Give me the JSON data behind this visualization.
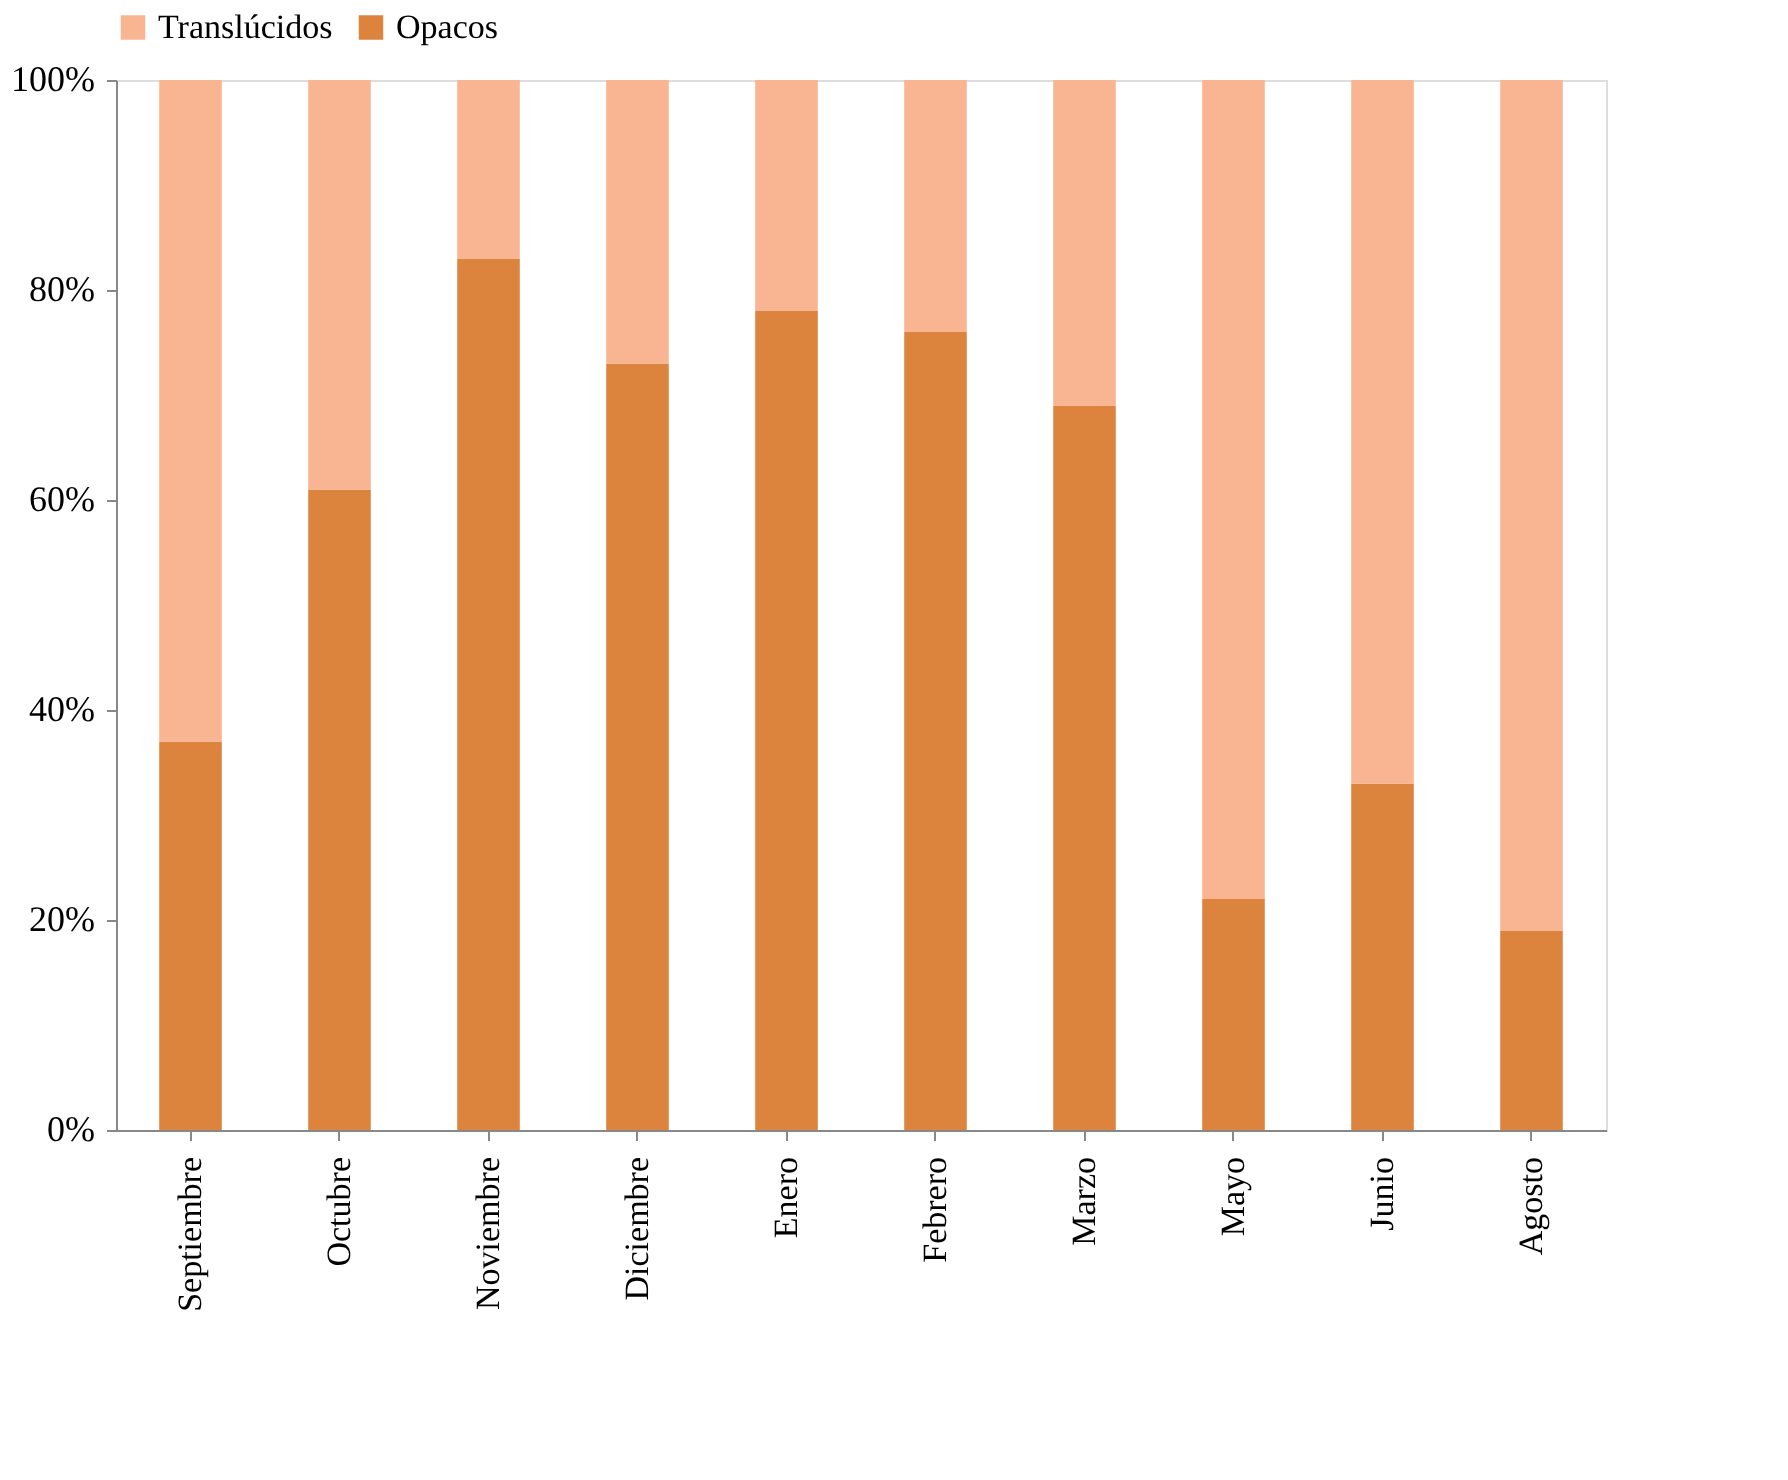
{
  "chart_data": {
    "type": "bar",
    "stacked": true,
    "categories": [
      "Septiembre",
      "Octubre",
      "Noviembre",
      "Diciembre",
      "Enero",
      "Febrero",
      "Marzo",
      "Mayo",
      "Junio",
      "Agosto"
    ],
    "series": [
      {
        "name": "Opacos",
        "color": "#dc843e",
        "values": [
          37,
          61,
          83,
          73,
          78,
          76,
          69,
          22,
          33,
          19
        ]
      },
      {
        "name": "Translúcidos",
        "color": "#f9b592",
        "values": [
          63,
          39,
          17,
          27,
          22,
          24,
          31,
          78,
          67,
          81
        ]
      }
    ],
    "ylim": [
      0,
      100
    ],
    "yticks": [
      {
        "value": 0,
        "label": "0%"
      },
      {
        "value": 20,
        "label": "20%"
      },
      {
        "value": 40,
        "label": "40%"
      },
      {
        "value": 60,
        "label": "60%"
      },
      {
        "value": 80,
        "label": "80%"
      },
      {
        "value": 100,
        "label": "100%"
      }
    ],
    "grid": false,
    "legend": "top"
  }
}
